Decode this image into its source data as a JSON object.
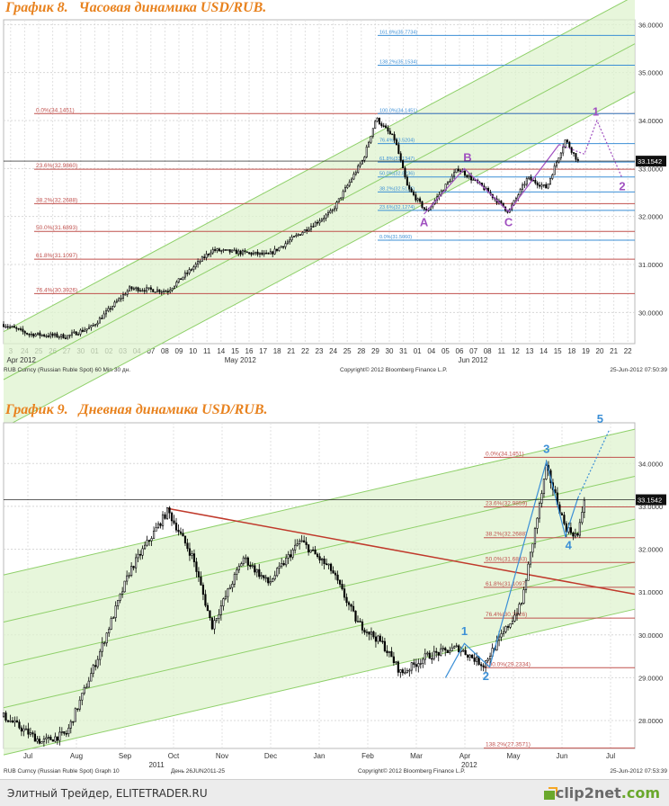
{
  "chart_data": [
    {
      "type": "line",
      "title": "График 8.   Часовая динамика USD/RUB.",
      "y_ticks": [
        "30.0000",
        "31.0000",
        "32.0000",
        "33.0000",
        "34.0000",
        "35.0000",
        "36.0000"
      ],
      "ylim": [
        29.35,
        36.1
      ],
      "x_ticks": [
        "3",
        "24",
        "25",
        "26",
        "27",
        "30",
        "01",
        "02",
        "03",
        "04",
        "07",
        "08",
        "09",
        "10",
        "11",
        "14",
        "15",
        "16",
        "17",
        "18",
        "21",
        "22",
        "23",
        "24",
        "25",
        "28",
        "29",
        "30",
        "31",
        "01",
        "04",
        "05",
        "06",
        "07",
        "08",
        "11",
        "12",
        "13",
        "14",
        "15",
        "18",
        "19",
        "20",
        "21",
        "22"
      ],
      "month_labels": [
        "Apr 2012",
        "May 2012",
        "Jun 2012"
      ],
      "last_price": "33.1542",
      "source_left": "RUB Curncy (Russian Ruble Spot) 60 Min 30 дн.",
      "source_center": "Copyright© 2012 Bloomberg Finance L.P.",
      "source_right": "25-Jun-2012 07:50:39",
      "fib_red": [
        {
          "label": "0.0%(34.1451)",
          "value": 34.1451
        },
        {
          "label": "23.6%(32.9860)",
          "value": 32.986
        },
        {
          "label": "38.2%(32.2688)",
          "value": 32.2688
        },
        {
          "label": "50.0%(31.6893)",
          "value": 31.6893
        },
        {
          "label": "61.8%(31.1097)",
          "value": 31.1097
        },
        {
          "label": "76.4%(30.3926)",
          "value": 30.3926
        }
      ],
      "fib_blue": [
        {
          "label": "161.8%(35.7734)",
          "value": 35.7734
        },
        {
          "label": "138.2%(35.1534)",
          "value": 35.1534
        },
        {
          "label": "100.0%(34.1451)",
          "value": 34.1451
        },
        {
          "label": "76.4%(33.5204)",
          "value": 33.5204
        },
        {
          "label": "61.8%(33.1347)",
          "value": 33.1347
        },
        {
          "label": "50.0%(32.8236)",
          "value": 32.8236
        },
        {
          "label": "38.2%(32.5125)",
          "value": 32.5125
        },
        {
          "label": "23.6%(32.1274)",
          "value": 32.1274
        },
        {
          "label": "0.0%(31.5060)",
          "value": 31.506
        }
      ],
      "wave_labels": [
        "A",
        "B",
        "C",
        "1",
        "2"
      ]
    },
    {
      "type": "line",
      "title": "График 9.   Дневная динамика USD/RUB.",
      "y_ticks": [
        "28.0000",
        "29.0000",
        "30.0000",
        "31.0000",
        "32.0000",
        "33.0000",
        "34.0000"
      ],
      "ylim": [
        27.35,
        34.95
      ],
      "x_ticks": [
        "Jul",
        "Aug",
        "Sep",
        "Oct",
        "Nov",
        "Dec",
        "Jan",
        "Feb",
        "Mar",
        "Apr",
        "May",
        "Jun",
        "Jul"
      ],
      "year_labels": [
        "2011",
        "2012"
      ],
      "last_price": "33.1542",
      "source_left": "RUB Curncy (Russian Ruble Spot) Graph 10",
      "source_mid": "День 26JUN2011-25",
      "source_center": "Copyright© 2012 Bloomberg Finance L.P.",
      "source_right": "25-Jun-2012 07:53:39",
      "fib_red": [
        {
          "label": "0.0%(34.1451)",
          "value": 34.1451
        },
        {
          "label": "23.6%(32.9859)",
          "value": 32.9859
        },
        {
          "label": "38.2%(32.2688)",
          "value": 32.2688
        },
        {
          "label": "50.0%(31.6893)",
          "value": 31.6893
        },
        {
          "label": "61.8%(31.1097)",
          "value": 31.1097
        },
        {
          "label": "76.4%(30.3926)",
          "value": 30.3926
        },
        {
          "label": "100.0%(29.2334)",
          "value": 29.2334
        },
        {
          "label": "138.2%(27.3571)",
          "value": 27.3571
        }
      ],
      "wave_labels": [
        "1",
        "2",
        "3",
        "4",
        "5"
      ]
    }
  ],
  "footer": {
    "left_text": "Элитный Трейдер, ELITETRADER.RU",
    "logo_main": "clip2net",
    "logo_suffix": ".com"
  },
  "colors": {
    "title": "#e8821e",
    "fib_red": "#c0504d",
    "fib_blue": "#3b8fd6",
    "channel_fill": "#dff3cf",
    "channel_line": "#8fd06a",
    "wave": "#a050c0",
    "wave_blue": "#3b8fd6",
    "trend_red": "#c0392b"
  }
}
